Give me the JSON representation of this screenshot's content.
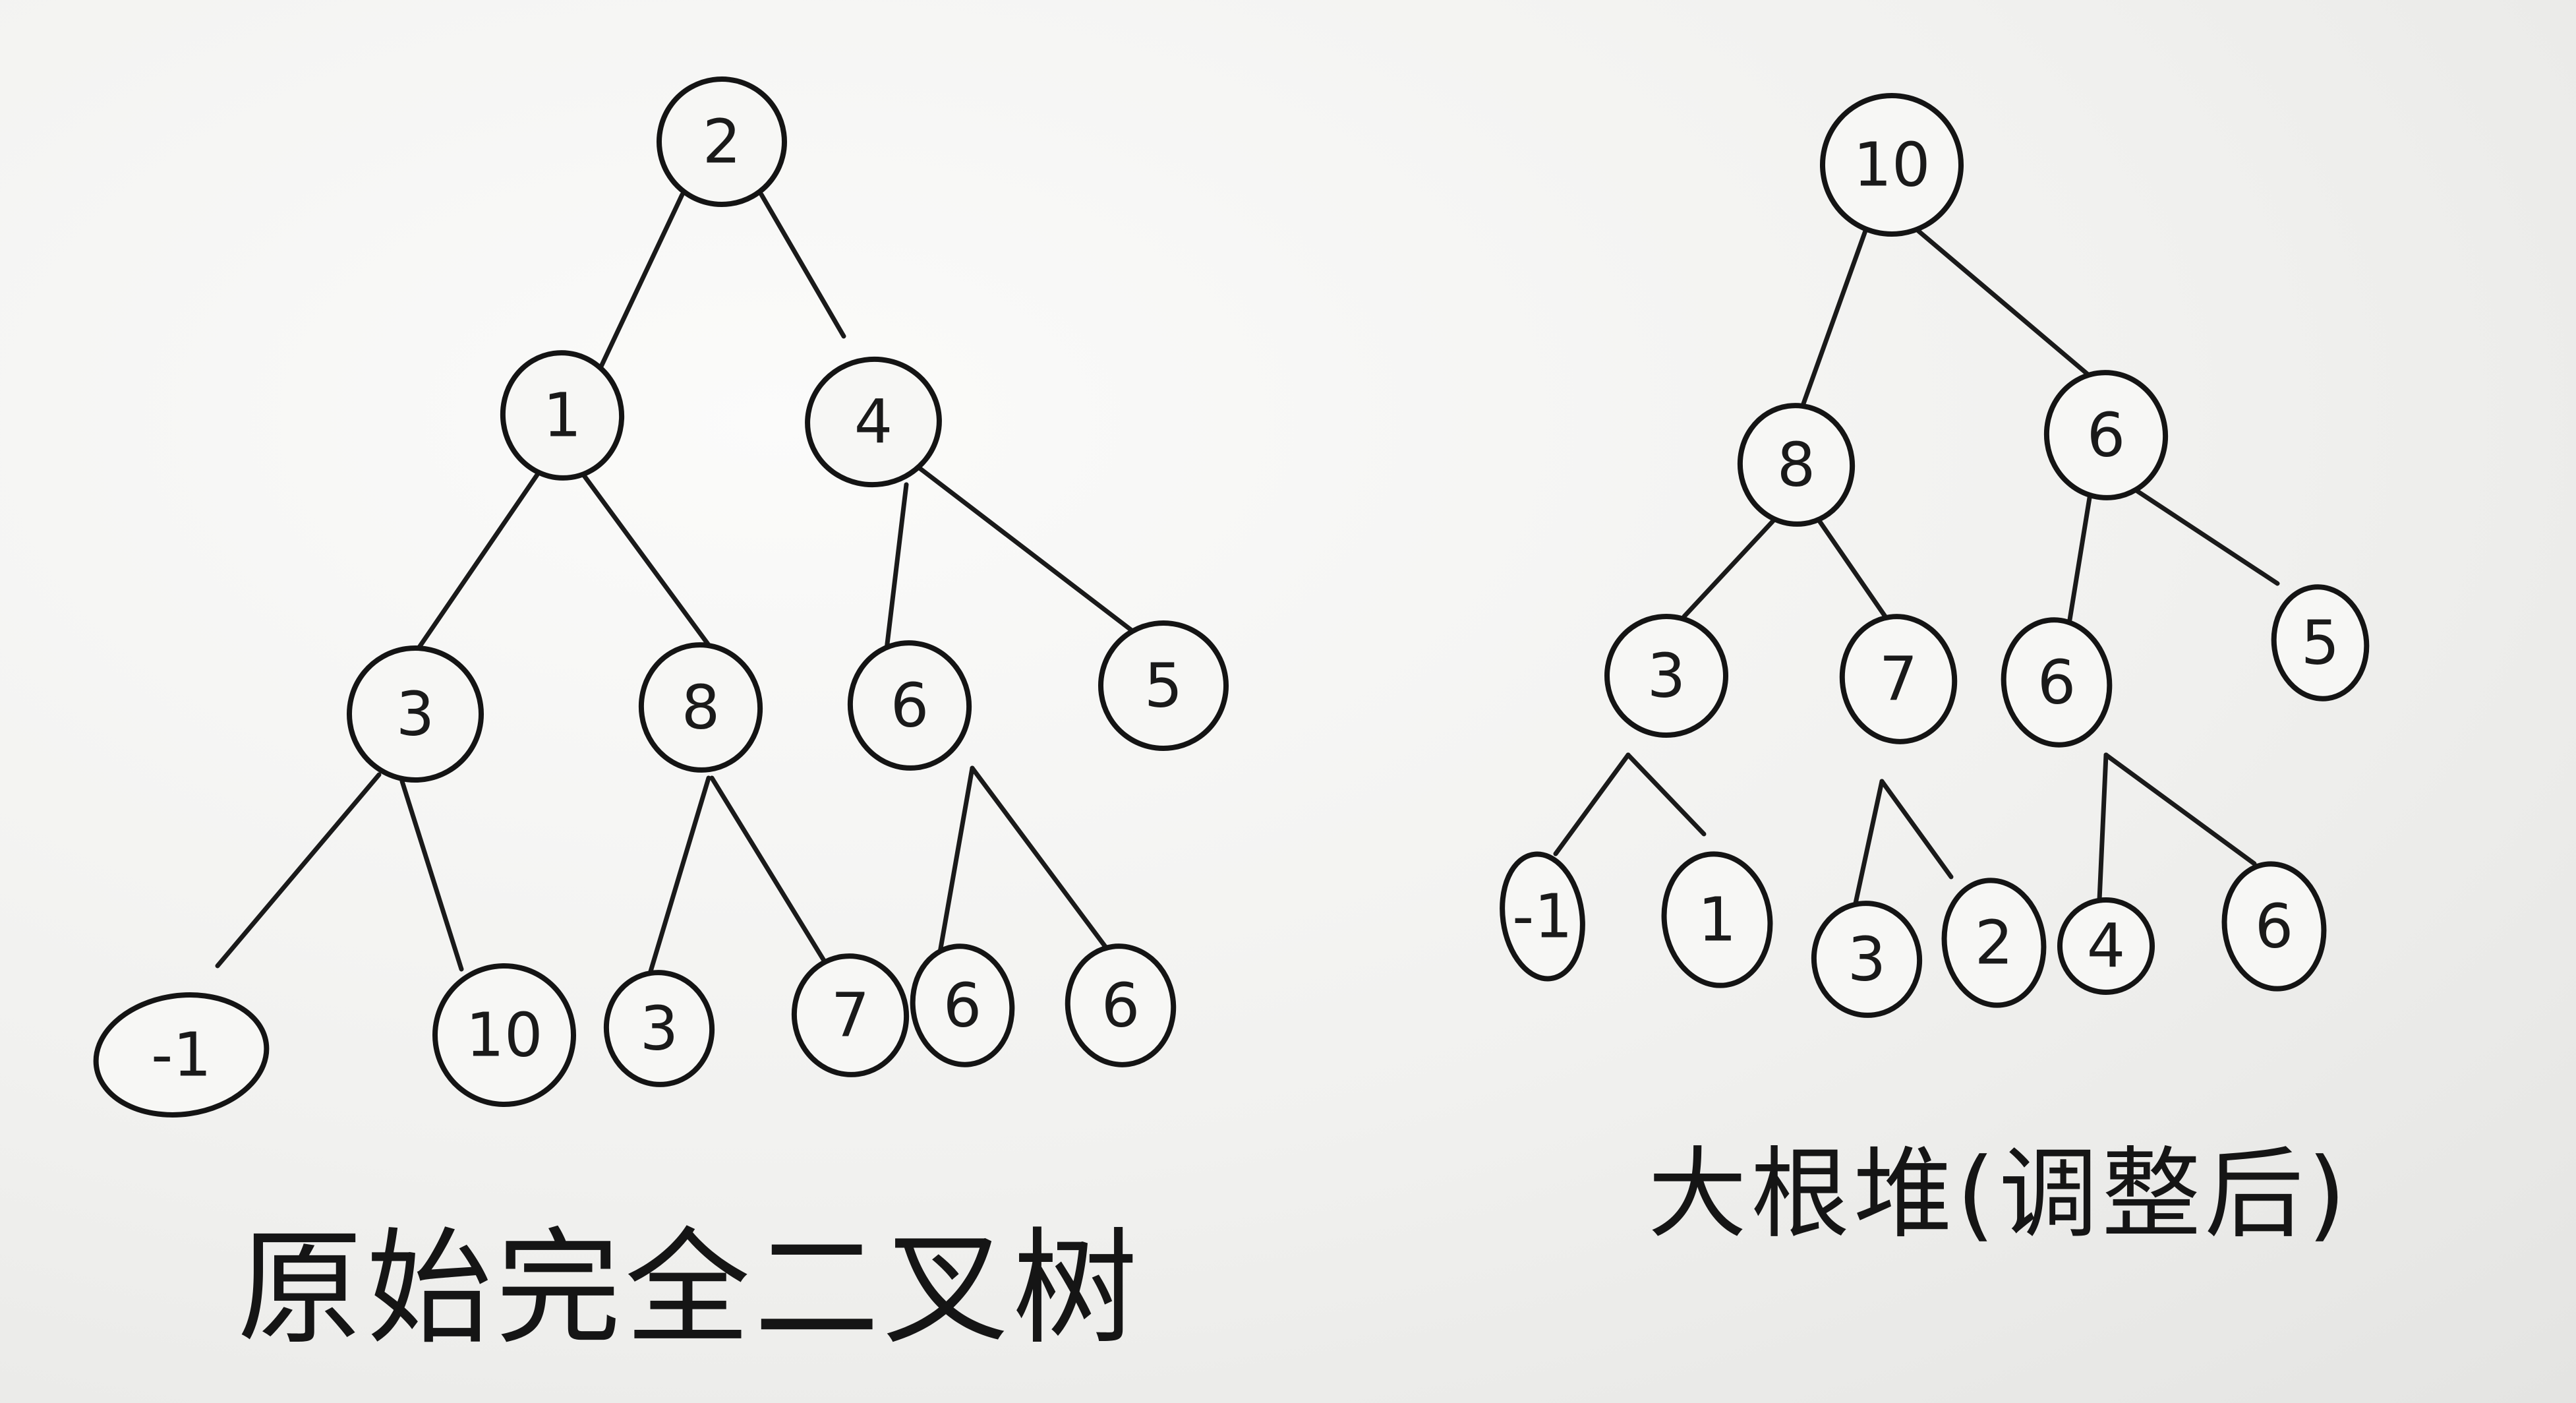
{
  "left_tree": {
    "caption": "原始完全二叉树",
    "nodes": [
      {
        "id": "root",
        "label": "2"
      },
      {
        "id": "l",
        "label": "1"
      },
      {
        "id": "r",
        "label": "4"
      },
      {
        "id": "ll",
        "label": "3"
      },
      {
        "id": "lr",
        "label": "8"
      },
      {
        "id": "rl",
        "label": "6"
      },
      {
        "id": "rr",
        "label": "5"
      },
      {
        "id": "lll",
        "label": "-1"
      },
      {
        "id": "llr",
        "label": "10"
      },
      {
        "id": "lrl",
        "label": "3"
      },
      {
        "id": "lrr",
        "label": "7"
      },
      {
        "id": "rll",
        "label": "6"
      },
      {
        "id": "rlr",
        "label": "6"
      }
    ],
    "edges": [
      [
        "root",
        "l"
      ],
      [
        "root",
        "r"
      ],
      [
        "l",
        "ll"
      ],
      [
        "l",
        "lr"
      ],
      [
        "r",
        "rl"
      ],
      [
        "r",
        "rr"
      ],
      [
        "ll",
        "lll"
      ],
      [
        "ll",
        "llr"
      ],
      [
        "lr",
        "lrl"
      ],
      [
        "lr",
        "lrr"
      ],
      [
        "rl",
        "rll"
      ],
      [
        "rl",
        "rlr"
      ]
    ]
  },
  "right_tree": {
    "caption": "大根堆(调整后)",
    "nodes": [
      {
        "id": "root",
        "label": "10"
      },
      {
        "id": "l",
        "label": "8"
      },
      {
        "id": "r",
        "label": "6"
      },
      {
        "id": "ll",
        "label": "3"
      },
      {
        "id": "lr",
        "label": "7"
      },
      {
        "id": "rl",
        "label": "6"
      },
      {
        "id": "rr",
        "label": "5"
      },
      {
        "id": "lll",
        "label": "-1"
      },
      {
        "id": "llr",
        "label": "1"
      },
      {
        "id": "lrl",
        "label": "3"
      },
      {
        "id": "lrr",
        "label": "2"
      },
      {
        "id": "rll",
        "label": "4"
      },
      {
        "id": "rlr",
        "label": "6"
      }
    ],
    "edges": [
      [
        "root",
        "l"
      ],
      [
        "root",
        "r"
      ],
      [
        "l",
        "ll"
      ],
      [
        "l",
        "lr"
      ],
      [
        "r",
        "rl"
      ],
      [
        "r",
        "rr"
      ],
      [
        "ll",
        "lll"
      ],
      [
        "ll",
        "llr"
      ],
      [
        "lr",
        "lrl"
      ],
      [
        "lr",
        "lrr"
      ],
      [
        "rl",
        "rll"
      ],
      [
        "rl",
        "rlr"
      ]
    ]
  }
}
